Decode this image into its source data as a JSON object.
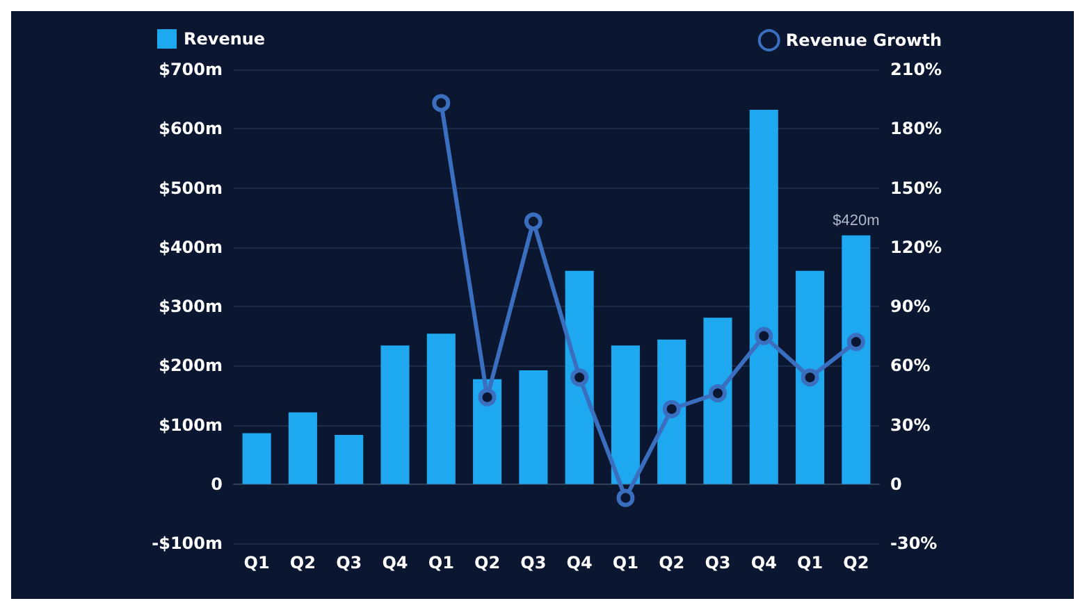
{
  "chart_data": {
    "type": "bar",
    "categories": [
      "Q1",
      "Q2",
      "Q3",
      "Q4",
      "Q1",
      "Q2",
      "Q3",
      "Q4",
      "Q1",
      "Q2",
      "Q3",
      "Q4",
      "Q1",
      "Q2"
    ],
    "series": [
      {
        "name": "Revenue",
        "color": "#1ea8ef",
        "values": [
          86,
          121,
          83,
          234,
          254,
          177,
          192,
          360,
          234,
          244,
          281,
          632,
          360,
          420
        ],
        "value_labels": [
          null,
          null,
          null,
          null,
          null,
          null,
          null,
          null,
          null,
          null,
          null,
          null,
          null,
          "$420m"
        ]
      },
      {
        "name": "Revenue Growth",
        "type": "line",
        "axis": "y2",
        "color": "#3a6fc0",
        "values": [
          null,
          null,
          null,
          null,
          193,
          44,
          133,
          54,
          -7,
          38,
          46,
          75,
          54,
          72
        ]
      }
    ],
    "ylim": [
      -100,
      700
    ],
    "yticks": [
      {
        "value": -100,
        "label": "-$100m"
      },
      {
        "value": 0,
        "label": "0"
      },
      {
        "value": 100,
        "label": "$100m"
      },
      {
        "value": 200,
        "label": "$200m"
      },
      {
        "value": 300,
        "label": "$300m"
      },
      {
        "value": 400,
        "label": "$400m"
      },
      {
        "value": 500,
        "label": "$500m"
      },
      {
        "value": 600,
        "label": "$600m"
      },
      {
        "value": 700,
        "label": "$700m"
      }
    ],
    "y2lim": [
      -30,
      210
    ],
    "y2ticks": [
      {
        "value": -30,
        "label": "-30%"
      },
      {
        "value": 0,
        "label": "0"
      },
      {
        "value": 30,
        "label": "30%"
      },
      {
        "value": 60,
        "label": "60%"
      },
      {
        "value": 90,
        "label": "90%"
      },
      {
        "value": 120,
        "label": "120%"
      },
      {
        "value": 150,
        "label": "150%"
      },
      {
        "value": 180,
        "label": "180%"
      },
      {
        "value": 210,
        "label": "210%"
      }
    ],
    "grid": "y",
    "legend": "top",
    "marker": "circle"
  }
}
